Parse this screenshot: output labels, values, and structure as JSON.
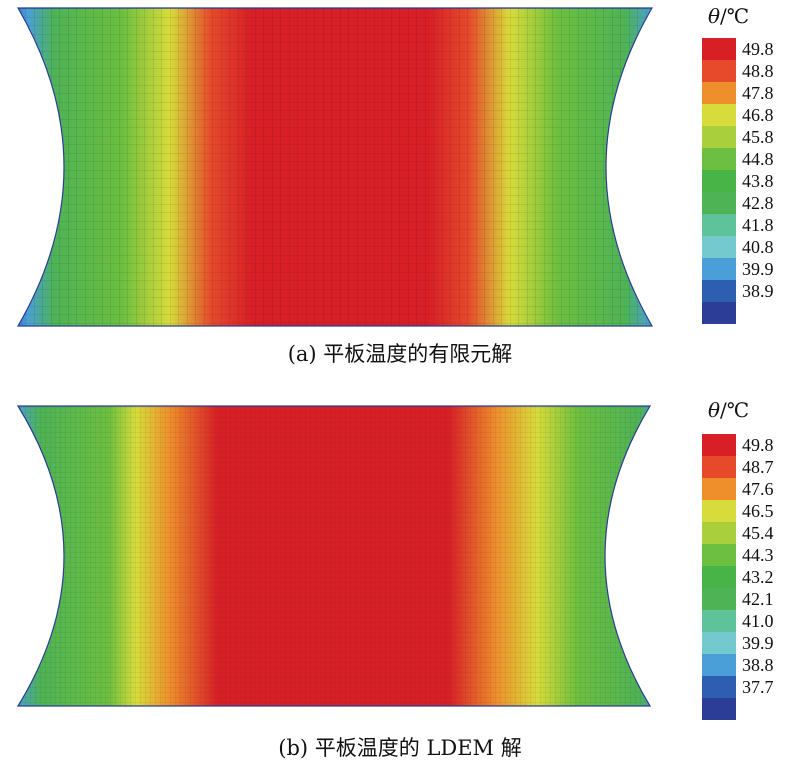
{
  "panels": [
    {
      "caption": "(a) 平板温度的有限元解",
      "unit_symbol": "θ",
      "unit_suffix": "/℃",
      "legend": {
        "colors": [
          "#d81f26",
          "#e64a2b",
          "#ef8f2c",
          "#d8dc3a",
          "#a9cf3b",
          "#6cbf3f",
          "#48b347",
          "#4eb355",
          "#5ec39a",
          "#74c9cf",
          "#4a9fd9",
          "#2d5fb1",
          "#2b3d96"
        ],
        "labels": [
          "49.8",
          "48.8",
          "47.8",
          "46.8",
          "45.8",
          "44.8",
          "43.8",
          "42.8",
          "41.8",
          "40.8",
          "39.9",
          "38.9"
        ]
      }
    },
    {
      "caption": "(b) 平板温度的 LDEM 解",
      "unit_symbol": "θ",
      "unit_suffix": "/℃",
      "legend": {
        "colors": [
          "#d81f26",
          "#e64a2b",
          "#ef8f2c",
          "#d8dc3a",
          "#a9cf3b",
          "#6cbf3f",
          "#48b347",
          "#4eb355",
          "#5ec39a",
          "#74c9cf",
          "#4a9fd9",
          "#2d5fb1",
          "#2b3d96"
        ],
        "labels": [
          "49.8",
          "48.7",
          "47.6",
          "46.5",
          "45.4",
          "44.3",
          "43.2",
          "42.1",
          "41.0",
          "39.9",
          "38.8",
          "37.7"
        ]
      }
    }
  ]
}
